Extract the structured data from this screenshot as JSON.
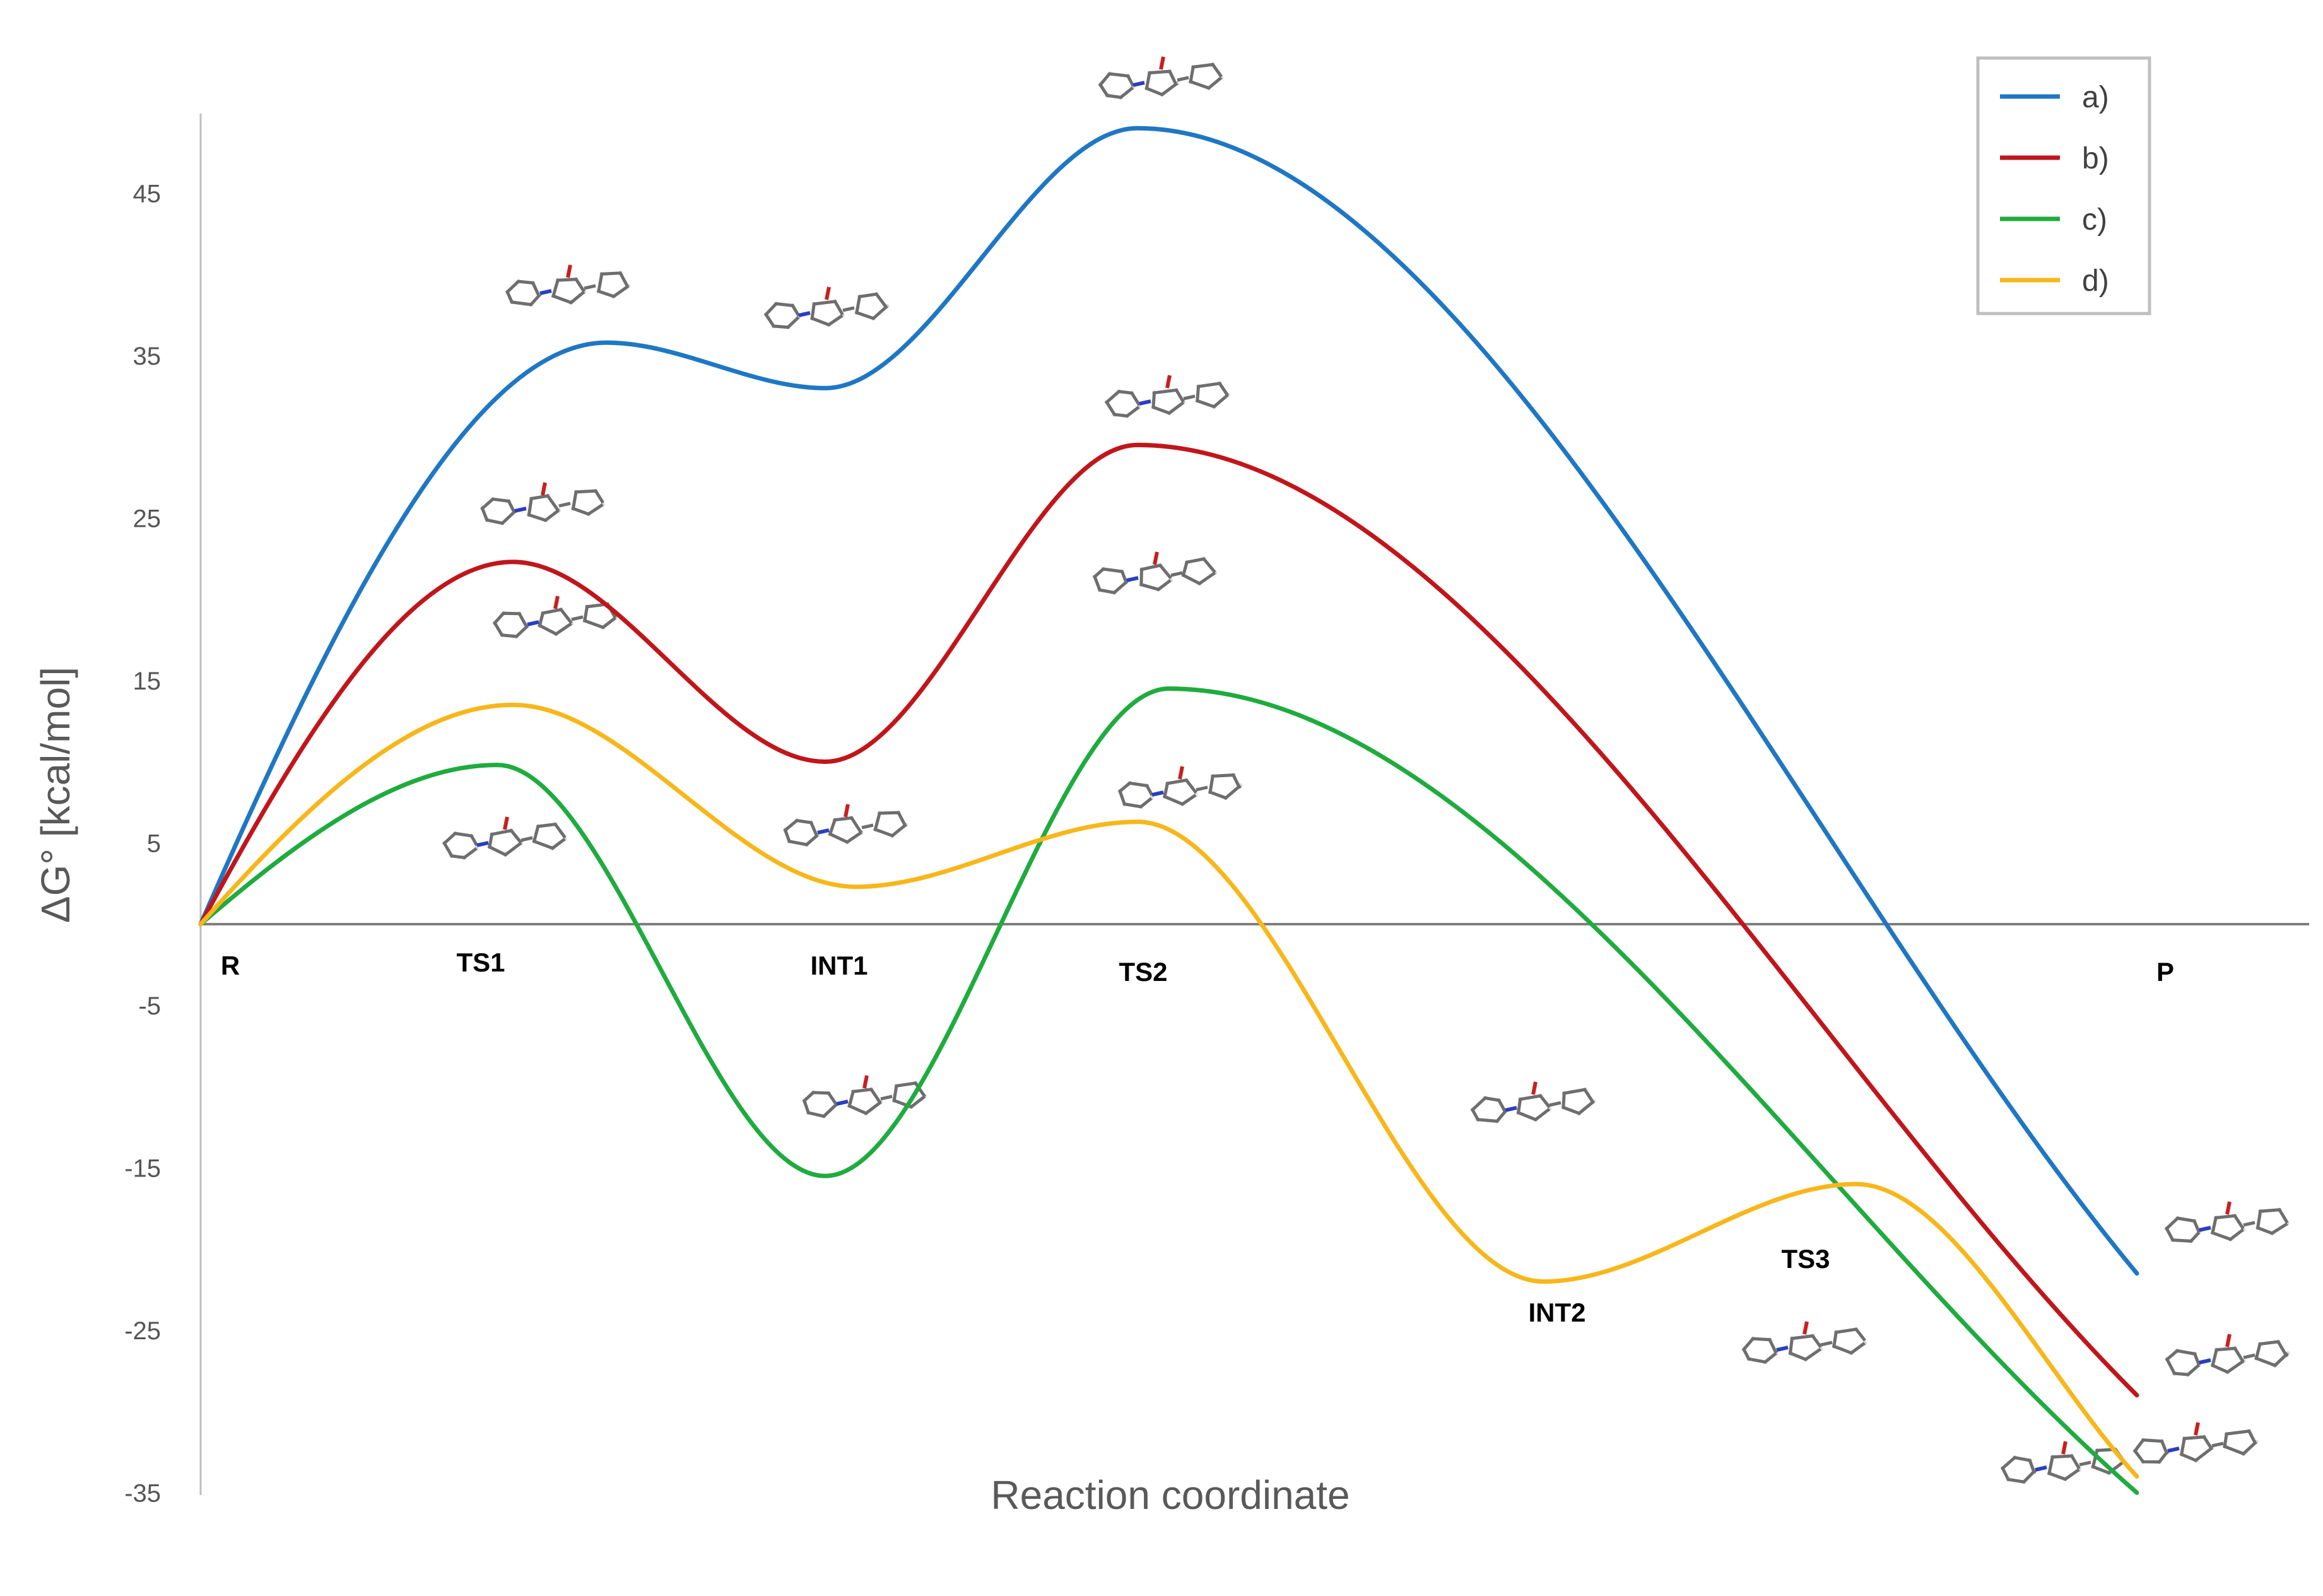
{
  "chart_data": {
    "type": "line",
    "title": "",
    "xlabel": "Reaction coordinate",
    "ylabel": "ΔG° [kcal/mol]",
    "ylim": [
      -35,
      50
    ],
    "yticks": [
      45,
      35,
      25,
      15,
      5,
      -5,
      -15,
      -25,
      -35
    ],
    "grid": false,
    "legend_position": "top-right",
    "stage_labels": [
      {
        "key": "R",
        "text": "R",
        "x": 0
      },
      {
        "key": "TS1",
        "text": "TS1",
        "x": 1
      },
      {
        "key": "INT1",
        "text": "INT1",
        "x": 2
      },
      {
        "key": "TS2",
        "text": "TS2",
        "x": 3
      },
      {
        "key": "INT2",
        "text": "INT2",
        "x": 4.3
      },
      {
        "key": "TS3",
        "text": "TS3",
        "x": 5.3
      },
      {
        "key": "P",
        "text": "P",
        "x": 6.3
      }
    ],
    "series": [
      {
        "name": "a)",
        "color": "#1f77c4",
        "points": [
          [
            0,
            0
          ],
          [
            1.3,
            35.8
          ],
          [
            2,
            33.0
          ],
          [
            3,
            49.0
          ],
          [
            6.2,
            -21.5
          ]
        ]
      },
      {
        "name": "b)",
        "color": "#c0161b",
        "points": [
          [
            0,
            0
          ],
          [
            1,
            22.3
          ],
          [
            2,
            10.0
          ],
          [
            3,
            29.5
          ],
          [
            6.2,
            -29.0
          ]
        ]
      },
      {
        "name": "c)",
        "color": "#1fab3f",
        "points": [
          [
            0,
            0
          ],
          [
            0.95,
            9.8
          ],
          [
            2,
            -15.5
          ],
          [
            3.1,
            14.5
          ],
          [
            6.2,
            -35.0
          ]
        ]
      },
      {
        "name": "d)",
        "color": "#f7b71b",
        "points": [
          [
            0,
            0
          ],
          [
            1,
            13.5
          ],
          [
            2.1,
            2.3
          ],
          [
            3,
            6.3
          ],
          [
            4.3,
            -22.0
          ],
          [
            5.3,
            -16.0
          ],
          [
            6.2,
            -34.0
          ]
        ]
      }
    ]
  }
}
